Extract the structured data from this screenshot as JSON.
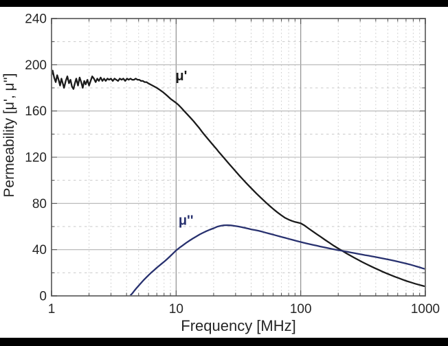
{
  "page": {
    "background": "#ffffff",
    "top_bar_color": "#000000",
    "bottom_bar_color": "#000000"
  },
  "chart_data": {
    "type": "line",
    "title": "",
    "xlabel": "Frequency [MHz]",
    "ylabel": "Permeability [μ', μ'']",
    "x_scale": "log",
    "y_scale": "linear",
    "xlim": [
      1,
      1000
    ],
    "ylim": [
      0,
      240
    ],
    "x_major_ticks": [
      1,
      10,
      100,
      1000
    ],
    "x_tick_labels": [
      "1",
      "10",
      "100",
      "1000"
    ],
    "y_major_step": 40,
    "y_minor_step": 20,
    "grid": {
      "major_h_color": "#b2b2b2",
      "major_v_color": "#8f8f8f",
      "minor_color": "#c9c9c9",
      "frame_color": "#757575",
      "tick_color": "#4a4a4a",
      "text_color": "#262626",
      "grid_on": true,
      "legend": "inline-labels"
    },
    "series": [
      {
        "name": "μ'",
        "color": "#1b1b1b",
        "points": [
          [
            1.0,
            191
          ],
          [
            1.02,
            195
          ],
          [
            1.05,
            189
          ],
          [
            1.08,
            185
          ],
          [
            1.11,
            191
          ],
          [
            1.14,
            187
          ],
          [
            1.17,
            182
          ],
          [
            1.2,
            188
          ],
          [
            1.23,
            184
          ],
          [
            1.26,
            180
          ],
          [
            1.3,
            186
          ],
          [
            1.34,
            190
          ],
          [
            1.38,
            184
          ],
          [
            1.42,
            187
          ],
          [
            1.46,
            181
          ],
          [
            1.5,
            179
          ],
          [
            1.54,
            184
          ],
          [
            1.58,
            188
          ],
          [
            1.63,
            182
          ],
          [
            1.68,
            189
          ],
          [
            1.73,
            185
          ],
          [
            1.78,
            180
          ],
          [
            1.83,
            186
          ],
          [
            1.88,
            183
          ],
          [
            1.94,
            187
          ],
          [
            2.0,
            182
          ],
          [
            2.06,
            186
          ],
          [
            2.12,
            190
          ],
          [
            2.19,
            188
          ],
          [
            2.26,
            185
          ],
          [
            2.33,
            188
          ],
          [
            2.4,
            186
          ],
          [
            2.48,
            189
          ],
          [
            2.56,
            186
          ],
          [
            2.64,
            188
          ],
          [
            2.72,
            186
          ],
          [
            2.81,
            188
          ],
          [
            2.9,
            187
          ],
          [
            3.0,
            188
          ],
          [
            3.1,
            186
          ],
          [
            3.2,
            188
          ],
          [
            3.31,
            187
          ],
          [
            3.42,
            186
          ],
          [
            3.53,
            188
          ],
          [
            3.65,
            187
          ],
          [
            3.77,
            188
          ],
          [
            3.9,
            186
          ],
          [
            4.03,
            188
          ],
          [
            4.16,
            187
          ],
          [
            4.3,
            188
          ],
          [
            4.44,
            187
          ],
          [
            4.59,
            187
          ],
          [
            4.74,
            188
          ],
          [
            4.9,
            187
          ],
          [
            5.06,
            187
          ],
          [
            5.23,
            186
          ],
          [
            5.41,
            186
          ],
          [
            5.59,
            185
          ],
          [
            5.78,
            185
          ],
          [
            5.97,
            184
          ],
          [
            6.2,
            183
          ],
          [
            6.6,
            181.5
          ],
          [
            7.0,
            180
          ],
          [
            7.4,
            178.3
          ],
          [
            7.8,
            176.5
          ],
          [
            8.2,
            174.6
          ],
          [
            8.6,
            172.6
          ],
          [
            9.0,
            170.6
          ],
          [
            9.5,
            168.8
          ],
          [
            10,
            167
          ],
          [
            10.5,
            165
          ],
          [
            11,
            162.8
          ],
          [
            11.6,
            160
          ],
          [
            12.2,
            157.5
          ],
          [
            13,
            154.3
          ],
          [
            13.8,
            151.2
          ],
          [
            14.6,
            148
          ],
          [
            15.4,
            145
          ],
          [
            16.2,
            141.8
          ],
          [
            17,
            139
          ],
          [
            18,
            135.8
          ],
          [
            19,
            132.8
          ],
          [
            20,
            130
          ],
          [
            21,
            127.3
          ],
          [
            22,
            124.6
          ],
          [
            23.5,
            121
          ],
          [
            25,
            117.6
          ],
          [
            26.5,
            114.4
          ],
          [
            28,
            111.5
          ],
          [
            30,
            107.8
          ],
          [
            32,
            104.4
          ],
          [
            34,
            101.3
          ],
          [
            36,
            98.4
          ],
          [
            38.5,
            95.1
          ],
          [
            41,
            92
          ],
          [
            44,
            88.7
          ],
          [
            47,
            85.7
          ],
          [
            50,
            83
          ],
          [
            53.5,
            80
          ],
          [
            57,
            77.4
          ],
          [
            61,
            74.7
          ],
          [
            65,
            72.3
          ],
          [
            70,
            69.7
          ],
          [
            75,
            67.5
          ],
          [
            80,
            66
          ],
          [
            85,
            64.9
          ],
          [
            90,
            64
          ],
          [
            95,
            63.4
          ],
          [
            100,
            62.8
          ],
          [
            108,
            60.7
          ],
          [
            116,
            58.2
          ],
          [
            125,
            55.8
          ],
          [
            135,
            53.3
          ],
          [
            145,
            51
          ],
          [
            157,
            48.4
          ],
          [
            170,
            45.9
          ],
          [
            184,
            43.4
          ],
          [
            200,
            41
          ],
          [
            216,
            38.9
          ],
          [
            233,
            36.8
          ],
          [
            251,
            34.8
          ],
          [
            270,
            32.9
          ],
          [
            291,
            31
          ],
          [
            314,
            29.1
          ],
          [
            338,
            27.4
          ],
          [
            364,
            25.7
          ],
          [
            392,
            24.1
          ],
          [
            422,
            22.5
          ],
          [
            455,
            20.9
          ],
          [
            490,
            19.4
          ],
          [
            528,
            18
          ],
          [
            569,
            16.6
          ],
          [
            613,
            15.3
          ],
          [
            660,
            14
          ],
          [
            711,
            12.8
          ],
          [
            766,
            11.7
          ],
          [
            825,
            10.6
          ],
          [
            889,
            9.6
          ],
          [
            957,
            8.7
          ],
          [
            1000,
            8.2
          ]
        ]
      },
      {
        "name": "μ''",
        "color": "#28316f",
        "points": [
          [
            4.3,
            0.5
          ],
          [
            4.45,
            2.2
          ],
          [
            4.6,
            4.2
          ],
          [
            4.8,
            6.6
          ],
          [
            5.0,
            8.8
          ],
          [
            5.2,
            10.9
          ],
          [
            5.45,
            13.3
          ],
          [
            5.7,
            15.5
          ],
          [
            6.0,
            17.9
          ],
          [
            6.3,
            20
          ],
          [
            6.6,
            21.9
          ],
          [
            6.95,
            24.1
          ],
          [
            7.3,
            26
          ],
          [
            7.7,
            28.1
          ],
          [
            8.1,
            30
          ],
          [
            8.5,
            32
          ],
          [
            9.0,
            34.5
          ],
          [
            9.5,
            37
          ],
          [
            10,
            39.3
          ],
          [
            10.6,
            41.5
          ],
          [
            11.2,
            43.4
          ],
          [
            12,
            45.8
          ],
          [
            12.8,
            47.8
          ],
          [
            13.6,
            49.6
          ],
          [
            14.5,
            51.4
          ],
          [
            15.5,
            53.2
          ],
          [
            16.5,
            54.7
          ],
          [
            17.5,
            56
          ],
          [
            18.7,
            57.3
          ],
          [
            20,
            58.5
          ],
          [
            21.3,
            59.8
          ],
          [
            22.7,
            60.6
          ],
          [
            24.2,
            61.1
          ],
          [
            25.8,
            61.2
          ],
          [
            27.5,
            61
          ],
          [
            29.3,
            60.6
          ],
          [
            31.2,
            60.1
          ],
          [
            33.3,
            59.5
          ],
          [
            35.5,
            58.9
          ],
          [
            37.8,
            58.2
          ],
          [
            40.3,
            57.5
          ],
          [
            43,
            57
          ],
          [
            45.8,
            56.4
          ],
          [
            48.8,
            55.6
          ],
          [
            52,
            54.8
          ],
          [
            55.4,
            54
          ],
          [
            59,
            53.2
          ],
          [
            62.9,
            52.4
          ],
          [
            67,
            51.6
          ],
          [
            71.4,
            50.8
          ],
          [
            76.1,
            50
          ],
          [
            81.1,
            49.2
          ],
          [
            86.4,
            48.4
          ],
          [
            92.1,
            47.6
          ],
          [
            98.1,
            46.9
          ],
          [
            104.5,
            46.1
          ],
          [
            111.4,
            45.4
          ],
          [
            118.7,
            44.7
          ],
          [
            126.5,
            44
          ],
          [
            134.8,
            43.4
          ],
          [
            143.6,
            42.7
          ],
          [
            153,
            42.1
          ],
          [
            163,
            41.5
          ],
          [
            173.7,
            40.9
          ],
          [
            185.1,
            40.3
          ],
          [
            197.2,
            39.7
          ],
          [
            210.1,
            39.2
          ],
          [
            223.9,
            38.6
          ],
          [
            238.6,
            38.1
          ],
          [
            254.2,
            37.5
          ],
          [
            270.9,
            37
          ],
          [
            288.6,
            36.4
          ],
          [
            307.5,
            35.9
          ],
          [
            327.7,
            35.3
          ],
          [
            349.1,
            34.8
          ],
          [
            372,
            34.2
          ],
          [
            396.4,
            33.7
          ],
          [
            422.3,
            33.1
          ],
          [
            450,
            32.5
          ],
          [
            480,
            31.9
          ],
          [
            520,
            31.2
          ],
          [
            560,
            30.4
          ],
          [
            600,
            29.7
          ],
          [
            650,
            28.8
          ],
          [
            700,
            28
          ],
          [
            750,
            27.2
          ],
          [
            800,
            26.3
          ],
          [
            850,
            25.5
          ],
          [
            900,
            24.7
          ],
          [
            950,
            23.9
          ],
          [
            1000,
            23.2
          ]
        ]
      }
    ],
    "annotations": [
      {
        "text": "μ'",
        "x": 11,
        "y": 190,
        "color": "#1b1b1b"
      },
      {
        "text": "μ''",
        "x": 12,
        "y": 65,
        "color": "#28316f"
      }
    ]
  }
}
